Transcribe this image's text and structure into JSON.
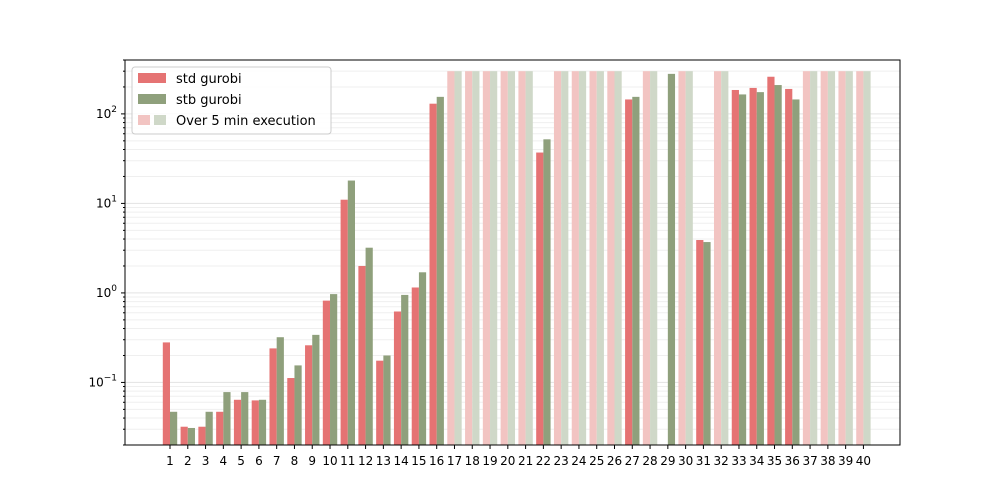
{
  "chart_data": {
    "type": "bar",
    "title": "",
    "xlabel": "",
    "ylabel": "",
    "yscale": "log",
    "ylim": [
      0.02,
      400
    ],
    "grid": {
      "y_minor": true,
      "x": false
    },
    "legend_placement": "top-left",
    "legend": {
      "std": "std gurobi",
      "stb": "stb gurobi",
      "over": "Over 5 min execution"
    },
    "timeout_value": 300,
    "categories": [
      "1",
      "2",
      "3",
      "4",
      "5",
      "6",
      "7",
      "8",
      "9",
      "10",
      "11",
      "12",
      "13",
      "14",
      "15",
      "16",
      "17",
      "18",
      "19",
      "20",
      "21",
      "22",
      "23",
      "24",
      "25",
      "26",
      "27",
      "28",
      "29",
      "30",
      "31",
      "32",
      "33",
      "34",
      "35",
      "36",
      "37",
      "38",
      "39",
      "40"
    ],
    "series": [
      {
        "name": "std gurobi",
        "color": "#e57373",
        "values": [
          0.28,
          0.032,
          0.032,
          0.047,
          0.064,
          0.063,
          0.24,
          0.112,
          0.26,
          0.82,
          11,
          2.0,
          0.175,
          0.62,
          1.15,
          130,
          null,
          null,
          null,
          null,
          null,
          37,
          null,
          null,
          null,
          null,
          145,
          null,
          null,
          null,
          3.9,
          null,
          185,
          195,
          260,
          190,
          null,
          null,
          null,
          null
        ]
      },
      {
        "name": "stb gurobi",
        "color": "#8fa07c",
        "values": [
          0.047,
          0.031,
          0.047,
          0.078,
          0.078,
          0.064,
          0.32,
          0.155,
          0.34,
          0.97,
          18,
          3.2,
          0.2,
          0.95,
          1.7,
          155,
          null,
          null,
          null,
          null,
          null,
          52,
          null,
          null,
          null,
          null,
          155,
          null,
          280,
          null,
          3.7,
          null,
          165,
          175,
          210,
          145,
          null,
          null,
          null,
          null
        ]
      }
    ],
    "yticks": [
      {
        "value": 0.1,
        "mantissa": "10",
        "exponent": "−1"
      },
      {
        "value": 1,
        "mantissa": "10",
        "exponent": "0"
      },
      {
        "value": 10,
        "mantissa": "10",
        "exponent": "1"
      },
      {
        "value": 100,
        "mantissa": "10",
        "exponent": "2"
      }
    ],
    "over_colors": {
      "std": "#f2c4c2",
      "stb": "#cfd8c8"
    }
  }
}
